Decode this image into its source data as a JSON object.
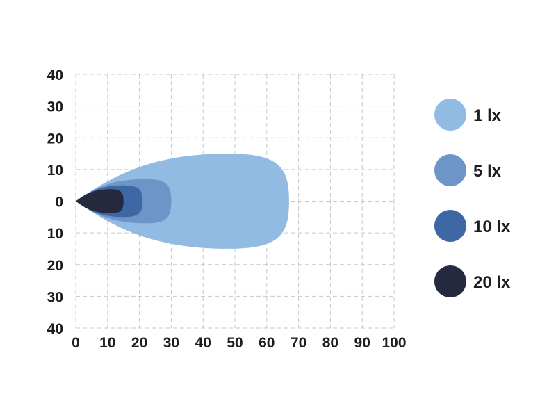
{
  "chart_data": {
    "type": "area",
    "title": "",
    "xlabel": "",
    "ylabel": "",
    "xlim": [
      0,
      100
    ],
    "ylim": [
      -40,
      40
    ],
    "grid": true,
    "x_ticks": [
      "0",
      "10",
      "20",
      "30",
      "40",
      "50",
      "60",
      "70",
      "80",
      "90",
      "100"
    ],
    "y_ticks": [
      "40",
      "30",
      "20",
      "10",
      "0",
      "10",
      "20",
      "30",
      "40"
    ],
    "legend_position": "right",
    "series": [
      {
        "name": "1 lx",
        "color": "#92bbe4",
        "reach": 67,
        "half_width": 15,
        "peak_x": 48
      },
      {
        "name": "5 lx",
        "color": "#6e95c8",
        "reach": 30,
        "half_width": 7,
        "peak_x": 22
      },
      {
        "name": "10 lx",
        "color": "#3e68a5",
        "reach": 21,
        "half_width": 5,
        "peak_x": 15
      },
      {
        "name": "20 lx",
        "color": "#262a3f",
        "reach": 15,
        "half_width": 3.8,
        "peak_x": 11
      }
    ]
  }
}
